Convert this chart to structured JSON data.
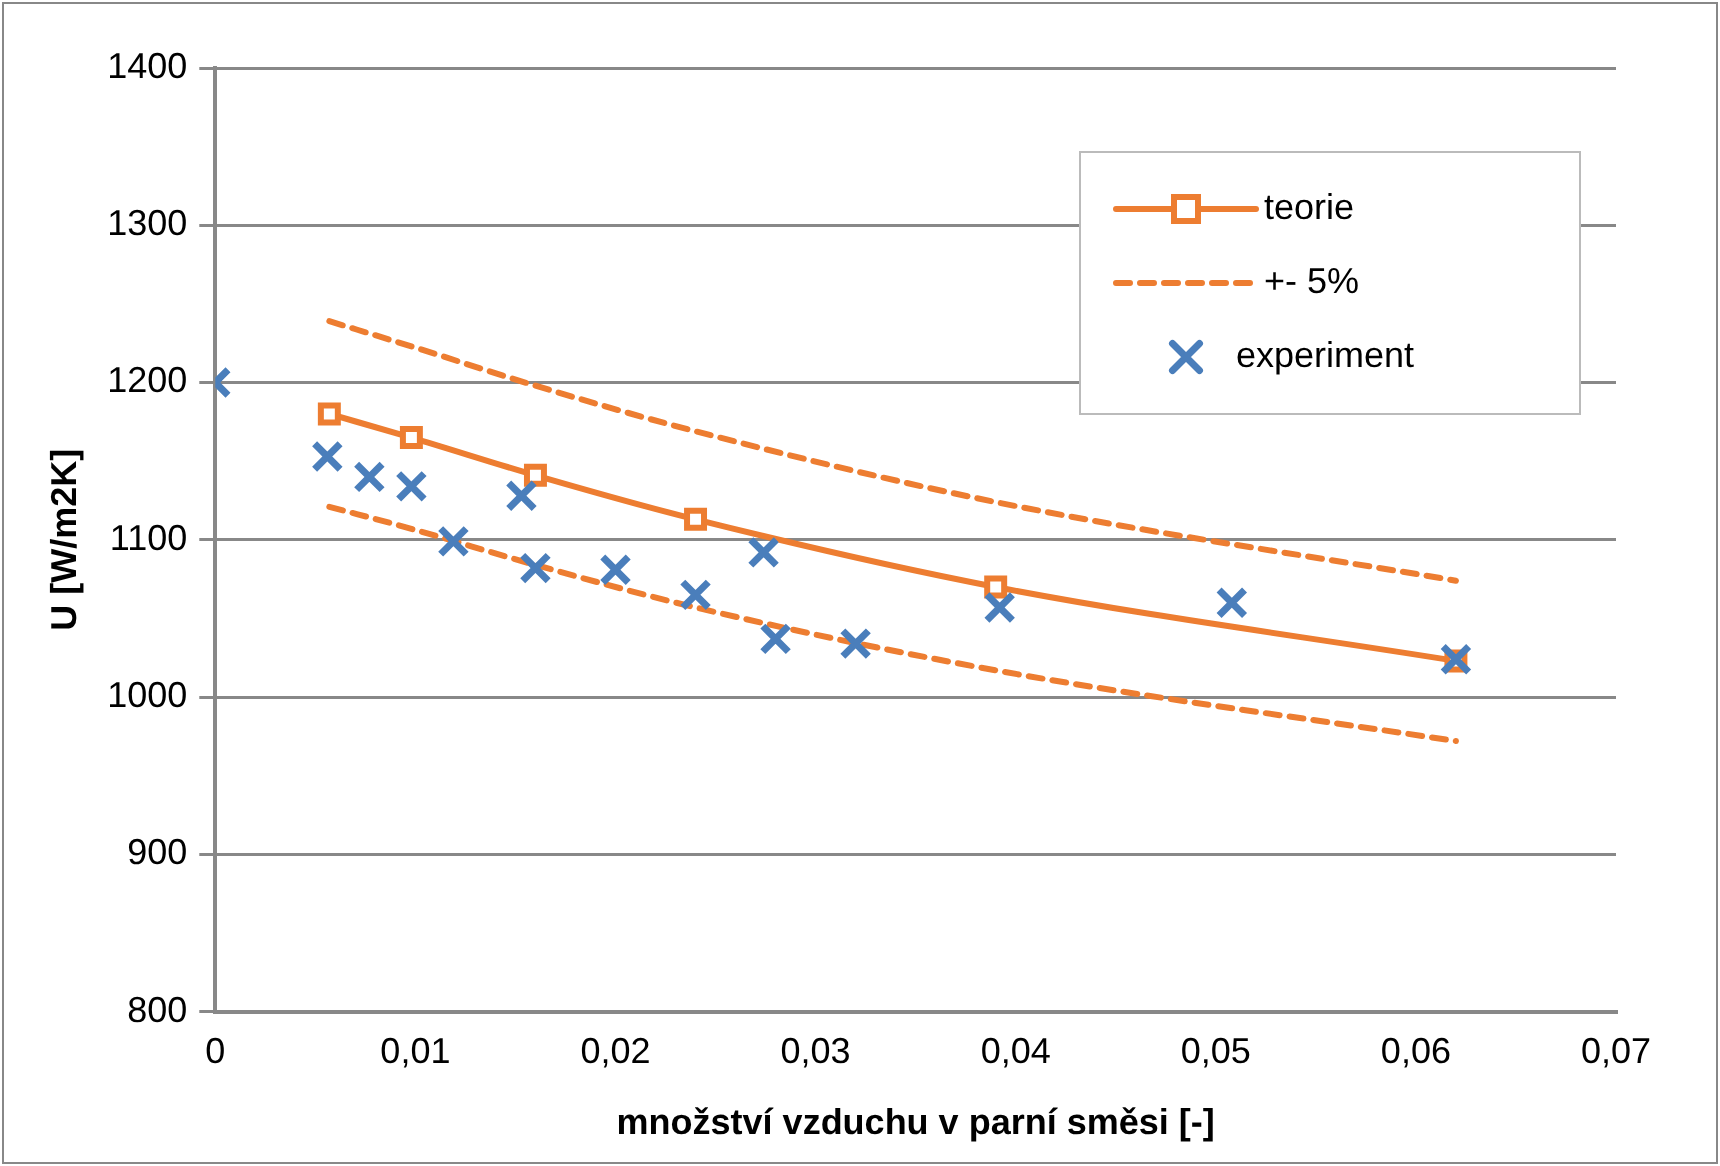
{
  "chart_data": {
    "type": "line",
    "xlabel": "množství vzduchu v parní směsi [-]",
    "ylabel": "U [W/m2K]",
    "xlim": [
      0,
      0.07
    ],
    "xticks": [
      0,
      {
        "value": 0.01,
        "label": "0,01"
      },
      {
        "value": 0.02,
        "label": "0,02"
      },
      {
        "value": 0.03,
        "label": "0,03"
      },
      {
        "value": 0.04,
        "label": "0,04"
      },
      {
        "value": 0.05,
        "label": "0,05"
      },
      {
        "value": 0.06,
        "label": "0,06"
      },
      {
        "value": 0.07,
        "label": "0,07"
      }
    ],
    "ylim": [
      800,
      1400
    ],
    "yticks": [
      800,
      900,
      1000,
      1100,
      1200,
      1300,
      1400
    ],
    "grid": "y",
    "legend": "top right",
    "series": [
      {
        "name": "teorie",
        "color": "#ed7d31",
        "marker": "square",
        "line_style": "solid",
        "x": [
          0.0057,
          0.0098,
          0.016,
          0.024,
          0.039,
          0.062
        ],
        "values": [
          1180,
          1165,
          1141,
          1113,
          1070,
          1023
        ]
      },
      {
        "name": "+- 5%",
        "color": "#ed7d31",
        "marker": "none",
        "line_style": "dashed",
        "x": [
          0.0057,
          0.0098,
          0.016,
          0.024,
          0.039,
          0.062
        ],
        "values": [
          1239,
          1223,
          1198,
          1169,
          1124,
          1074
        ]
      },
      {
        "color": "#ed7d31",
        "marker": "none",
        "line_style": "dashed",
        "x": [
          0.0057,
          0.0098,
          0.016,
          0.024,
          0.039,
          0.062
        ],
        "values": [
          1121,
          1107,
          1084,
          1057,
          1017,
          972
        ]
      },
      {
        "name": "experiment",
        "type": "scatter",
        "color": "#4a7ebb",
        "marker": "cross",
        "x": [
          0,
          0.0056,
          0.0077,
          0.0098,
          0.0119,
          0.0153,
          0.016,
          0.02,
          0.024,
          0.0274,
          0.028,
          0.032,
          0.0392,
          0.0508,
          0.062
        ],
        "values": [
          1200,
          1153,
          1140,
          1134,
          1099,
          1128,
          1082,
          1081,
          1065,
          1092,
          1037,
          1034,
          1057,
          1060,
          1024
        ]
      }
    ]
  }
}
